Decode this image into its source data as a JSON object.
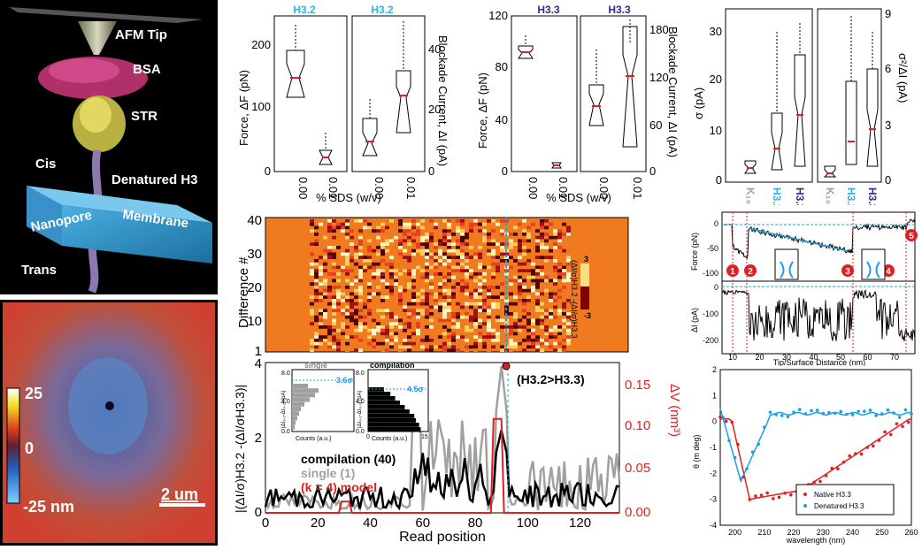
{
  "colors": {
    "h32": "#2ab7e8",
    "h33": "#3a2a8f",
    "red": "#e02020",
    "grey": "#a0a0a0",
    "cyan": "#1ea0e0"
  },
  "panelA": {
    "labels": {
      "afm": "AFM Tip",
      "bsa": "BSA",
      "str": "STR",
      "cis": "Cis",
      "denatured": "Denatured H3",
      "membrane": "Membrane",
      "nanopore": "Nanopore",
      "trans": "Trans"
    }
  },
  "panelB": {
    "colorbar_ticks": [
      "25",
      "0",
      "-25 nm"
    ],
    "scalebar": "2 um"
  },
  "panelC": {
    "titles": [
      "H3.2",
      "H3.2"
    ],
    "ylabel_left": "Force, ΔF (pN)",
    "ylabel_right": "Blockade Current, ΔI (pA)",
    "xlabel": "% SDS (w/v)",
    "xticks": [
      "0.00",
      "0.01",
      "0.00",
      "0.01"
    ],
    "yticks_left": [
      "200",
      "100",
      "0"
    ],
    "yticks_right": [
      "40",
      "20",
      "0"
    ]
  },
  "panelD": {
    "titles": [
      "H3.3",
      "H3.3"
    ],
    "ylabel_left": "Force, ΔF (pN)",
    "ylabel_right": "Blockade Current, ΔI (pA)",
    "xlabel": "% SDS (w/v)",
    "xticks": [
      "0.00",
      "0.01",
      "0.00",
      "0.01"
    ],
    "yticks_left": [
      "120",
      "80",
      "40",
      "0"
    ],
    "yticks_right": [
      "180",
      "120",
      "60",
      "0"
    ]
  },
  "panelE": {
    "ylabel_left": "σ (pA)",
    "ylabel_right": "σ²/ΔI (pA)",
    "xticks": [
      "K₁₀₀",
      "H3.2",
      "H3.3",
      "K₁₀₀",
      "H3.2",
      "H3.3"
    ],
    "yticks_left": [
      "30",
      "20",
      "10",
      "0"
    ],
    "yticks_right": [
      "9",
      "6",
      "3",
      "0"
    ]
  },
  "panelF": {
    "ylabel": "Difference #",
    "yticks": [
      "40",
      "30",
      "20",
      "10",
      "1"
    ],
    "colorbar_label": "(ΔI/σ)H3.2 -(ΔI/σ)H3.3",
    "colorbar_ticks": [
      "3",
      "-3"
    ]
  },
  "panelG": {
    "ylabel_left": "|(ΔI/σ)H3.2 -(ΔI/σH3.3)|",
    "ylabel_right": "ΔV (nm³)",
    "xlabel": "Read position",
    "xticks": [
      "0",
      "20",
      "40",
      "60",
      "80",
      "100",
      "120"
    ],
    "yticks_left": [
      "4",
      "2",
      "0"
    ],
    "yticks_right": [
      "0.15",
      "0.10",
      "0.05",
      "0.00"
    ],
    "annotation": "(H3.2>H3.3)",
    "legend": [
      "compilation (40)",
      "single (1)",
      "(k = 4) model"
    ],
    "inset_single": {
      "title": "single",
      "value": "3.6σ",
      "ylabel": "|ΔI₃.₂-ΔI₃.₃| (pA)",
      "xlabel": "Counts (a.u.)",
      "yticks": [
        "8.0",
        "4.0",
        "0.0"
      ]
    },
    "inset_comp": {
      "title": "compilation",
      "value": "4.5σ",
      "ylabel": "|ΔI₃.₂-ΔI₃.₃| (pA)",
      "xlabel": "Counts (a.u.)",
      "yticks": [
        "8.0",
        "4.0",
        "0.0"
      ],
      "xticks": [
        "0",
        "15"
      ]
    }
  },
  "panelH": {
    "ylabel_top": "Force (pN)",
    "ylabel_bottom": "ΔI (pA)",
    "xlabel": "Tip/Surface Distance (nm)",
    "xticks": [
      "10",
      "20",
      "30",
      "40",
      "50",
      "60",
      "70"
    ],
    "yticks_top": [
      "0",
      "-50",
      "-100"
    ],
    "yticks_bottom": [
      "0",
      "-100",
      "-200"
    ],
    "markers": [
      "1",
      "2",
      "3",
      "4",
      "5"
    ]
  },
  "panelI": {
    "ylabel": "θ (m deg)",
    "xlabel": "wavelength (nm)",
    "xticks": [
      "200",
      "210",
      "220",
      "230",
      "240",
      "250",
      "260"
    ],
    "yticks": [
      "2",
      "1",
      "0",
      "-1",
      "-2",
      "-3",
      "-4"
    ],
    "legend": [
      "Native H3.3",
      "Denatured H3.3"
    ]
  }
}
